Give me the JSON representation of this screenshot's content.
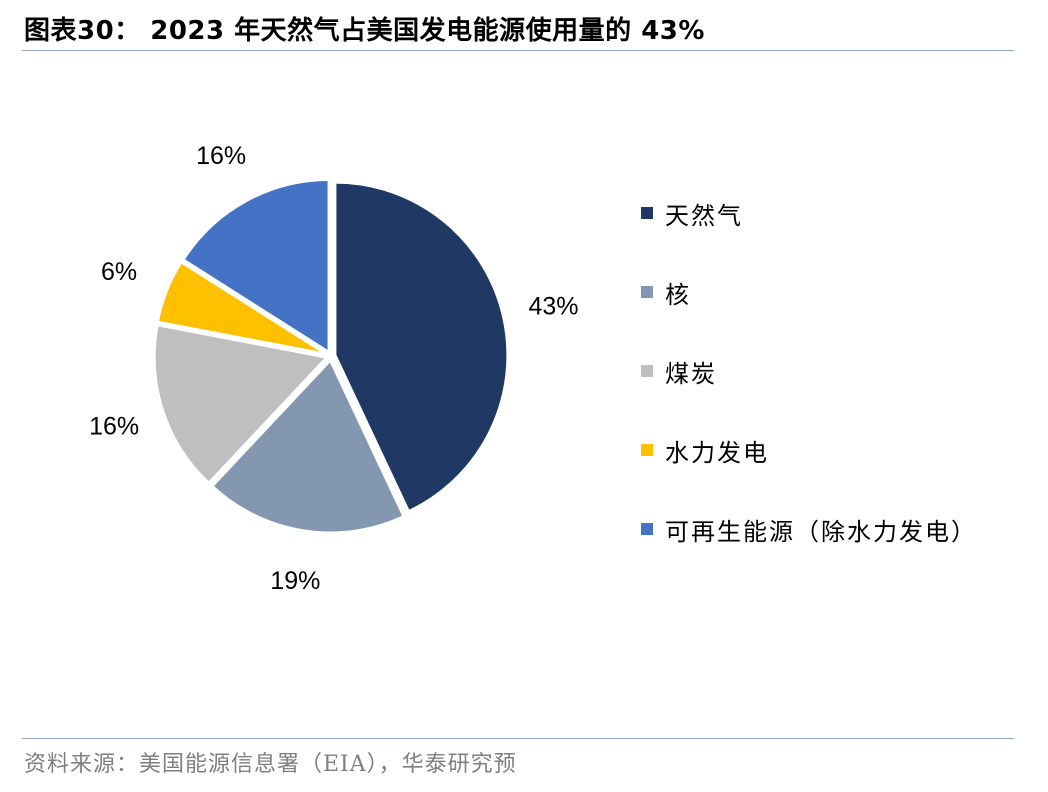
{
  "header": {
    "title": "图表30：  2023 年天然气占美国发电能源使用量的 43%"
  },
  "footer": {
    "source": "资料来源：美国能源信息署（EIA），华泰研究预"
  },
  "chart_data": {
    "type": "pie",
    "title": "",
    "start_angle_deg": 0,
    "direction": "clockwise",
    "slices": [
      {
        "name": "天然气",
        "value": 43,
        "label": "43%",
        "color": "#203864"
      },
      {
        "name": "核",
        "value": 19,
        "label": "19%",
        "color": "#8497b0"
      },
      {
        "name": "煤炭",
        "value": 16,
        "label": "16%",
        "color": "#bfbfbf"
      },
      {
        "name": "水力发电",
        "value": 6,
        "label": "6%",
        "color": "#ffc000"
      },
      {
        "name": "可再生能源（除水力发电）",
        "value": 16,
        "label": "16%",
        "color": "#4472c4"
      }
    ],
    "legend_position": "right"
  }
}
